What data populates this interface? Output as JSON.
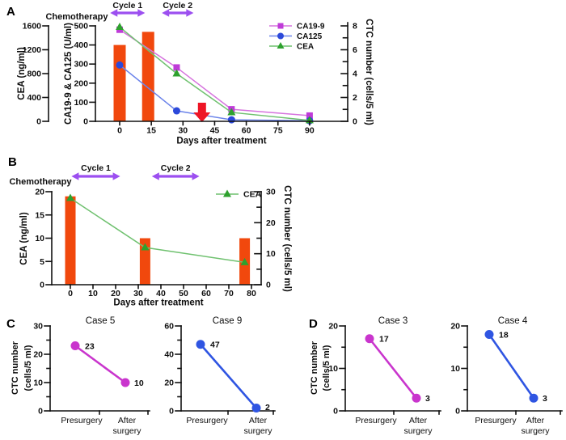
{
  "colors": {
    "orange_bar": "#F1480D",
    "purple_arrow": "#9C4FF0",
    "red_arrow": "#EE1525",
    "magenta": "#BF3BD8",
    "magenta_light": "#D673DE",
    "blue": "#2C49DA",
    "blue_light": "#6C84EA",
    "green": "#2EA12E",
    "green_light": "#6FC16F",
    "case_magenta": "#C935CD",
    "case_blue": "#2F55E2",
    "axis": "#121212"
  },
  "chart_data": [
    {
      "id": "panel-a",
      "type": "line",
      "panel_label": "A",
      "annotations": {
        "chemo_label": "Chemotherapy",
        "cycles": [
          {
            "label": "Cycle 1",
            "day_start": -4.5,
            "day_end": 12
          },
          {
            "label": "Cycle 2",
            "day_start": 20,
            "day_end": 35
          }
        ],
        "red_arrow_day": 39
      },
      "x_axis": {
        "label": "Days after treatment",
        "ticks": [
          0,
          15,
          30,
          45,
          60,
          75,
          90
        ],
        "max": 90
      },
      "axes_left": [
        {
          "label": "CEA (ng/ml)",
          "ticks": [
            0,
            400,
            800,
            1200,
            1600
          ],
          "max": 1600
        },
        {
          "label": "CA19-9 & CA125 (U/ml)",
          "ticks": [
            0,
            100,
            200,
            300,
            400,
            500
          ],
          "max": 500
        }
      ],
      "axis_right": {
        "label": "CTC number (cells/5 ml)",
        "ticks": [
          0,
          2,
          4,
          6,
          8
        ],
        "max": 8,
        "minor_step": 1
      },
      "bars": {
        "name": "CTC number bars",
        "days": [
          0,
          13.5
        ],
        "values": [
          6.4,
          7.5
        ],
        "axis_max": 8
      },
      "series": [
        {
          "name": "CA19-9",
          "marker": "square",
          "color_key": "magenta",
          "axis_max": 500,
          "days": [
            0,
            27,
            53,
            90
          ],
          "values": [
            480,
            282,
            63,
            30
          ]
        },
        {
          "name": "CA125",
          "marker": "circle",
          "color_key": "blue",
          "axis_max": 500,
          "days": [
            0,
            27,
            53,
            90
          ],
          "values": [
            295,
            55,
            8,
            3
          ]
        },
        {
          "name": "CEA",
          "marker": "triangle",
          "color_key": "green",
          "axis_max": 1600,
          "days": [
            0,
            27,
            53,
            90
          ],
          "values": [
            1580,
            800,
            150,
            15
          ]
        }
      ],
      "legend": [
        "CA19-9",
        "CA125",
        "CEA"
      ]
    },
    {
      "id": "panel-b",
      "type": "line",
      "panel_label": "B",
      "annotations": {
        "chemo_label": "Chemotherapy",
        "cycles": [
          {
            "label": "Cycle 1",
            "day_start": 0.5,
            "day_end": 22
          },
          {
            "label": "Cycle 2",
            "day_start": 36,
            "day_end": 57
          }
        ]
      },
      "x_axis": {
        "label": "Days after treatment",
        "ticks": [
          0,
          10,
          20,
          30,
          40,
          50,
          60,
          70,
          80
        ],
        "max": 80
      },
      "axes_left": [
        {
          "label": "CEA (ng/ml)",
          "ticks": [
            0,
            5,
            10,
            15,
            20
          ],
          "max": 20
        }
      ],
      "axis_right": {
        "label": "CTC number (cells/5 ml)",
        "ticks": [
          0,
          10,
          20,
          30
        ],
        "max": 30,
        "minor_step": 5
      },
      "bars": {
        "name": "CTC number bars",
        "days": [
          0,
          33,
          77
        ],
        "values": [
          28.5,
          15,
          15
        ],
        "axis_max": 30
      },
      "series": [
        {
          "name": "CEA",
          "marker": "triangle",
          "color_key": "green",
          "axis_max": 20,
          "days": [
            0,
            33,
            77
          ],
          "values": [
            18.6,
            8,
            4.8
          ]
        }
      ],
      "legend": [
        "CEA"
      ]
    },
    {
      "id": "case-5",
      "type": "line",
      "panel_label": "C",
      "title": "Case 5",
      "ylabel_lines": [
        "CTC number",
        "(cells/5 ml)"
      ],
      "y_ticks": [
        0,
        10,
        20,
        30
      ],
      "y_max": 30,
      "categories": [
        "Presurgery",
        "After surgery"
      ],
      "values": [
        23,
        10
      ],
      "value_labels": [
        "23",
        "10"
      ],
      "color_key": "case_magenta"
    },
    {
      "id": "case-9",
      "type": "line",
      "title": "Case 9",
      "y_ticks": [
        0,
        20,
        40,
        60
      ],
      "y_max": 60,
      "categories": [
        "Presurgery",
        "After surgery"
      ],
      "values": [
        47,
        2
      ],
      "value_labels": [
        "47",
        "2"
      ],
      "color_key": "case_blue"
    },
    {
      "id": "case-3",
      "type": "line",
      "panel_label": "D",
      "title": "Case 3",
      "ylabel_lines": [
        "CTC number",
        "(cells/5 ml)"
      ],
      "y_ticks": [
        0,
        10,
        20
      ],
      "y_max": 20,
      "categories": [
        "Presurgery",
        "After surgery"
      ],
      "values": [
        17,
        3
      ],
      "value_labels": [
        "17",
        "3"
      ],
      "color_key": "case_magenta"
    },
    {
      "id": "case-4",
      "type": "line",
      "title": "Case 4",
      "y_ticks": [
        0,
        10,
        20
      ],
      "y_max": 20,
      "categories": [
        "Presurgery",
        "After surgery"
      ],
      "values": [
        18,
        3
      ],
      "value_labels": [
        "18",
        "3"
      ],
      "color_key": "case_blue"
    }
  ]
}
